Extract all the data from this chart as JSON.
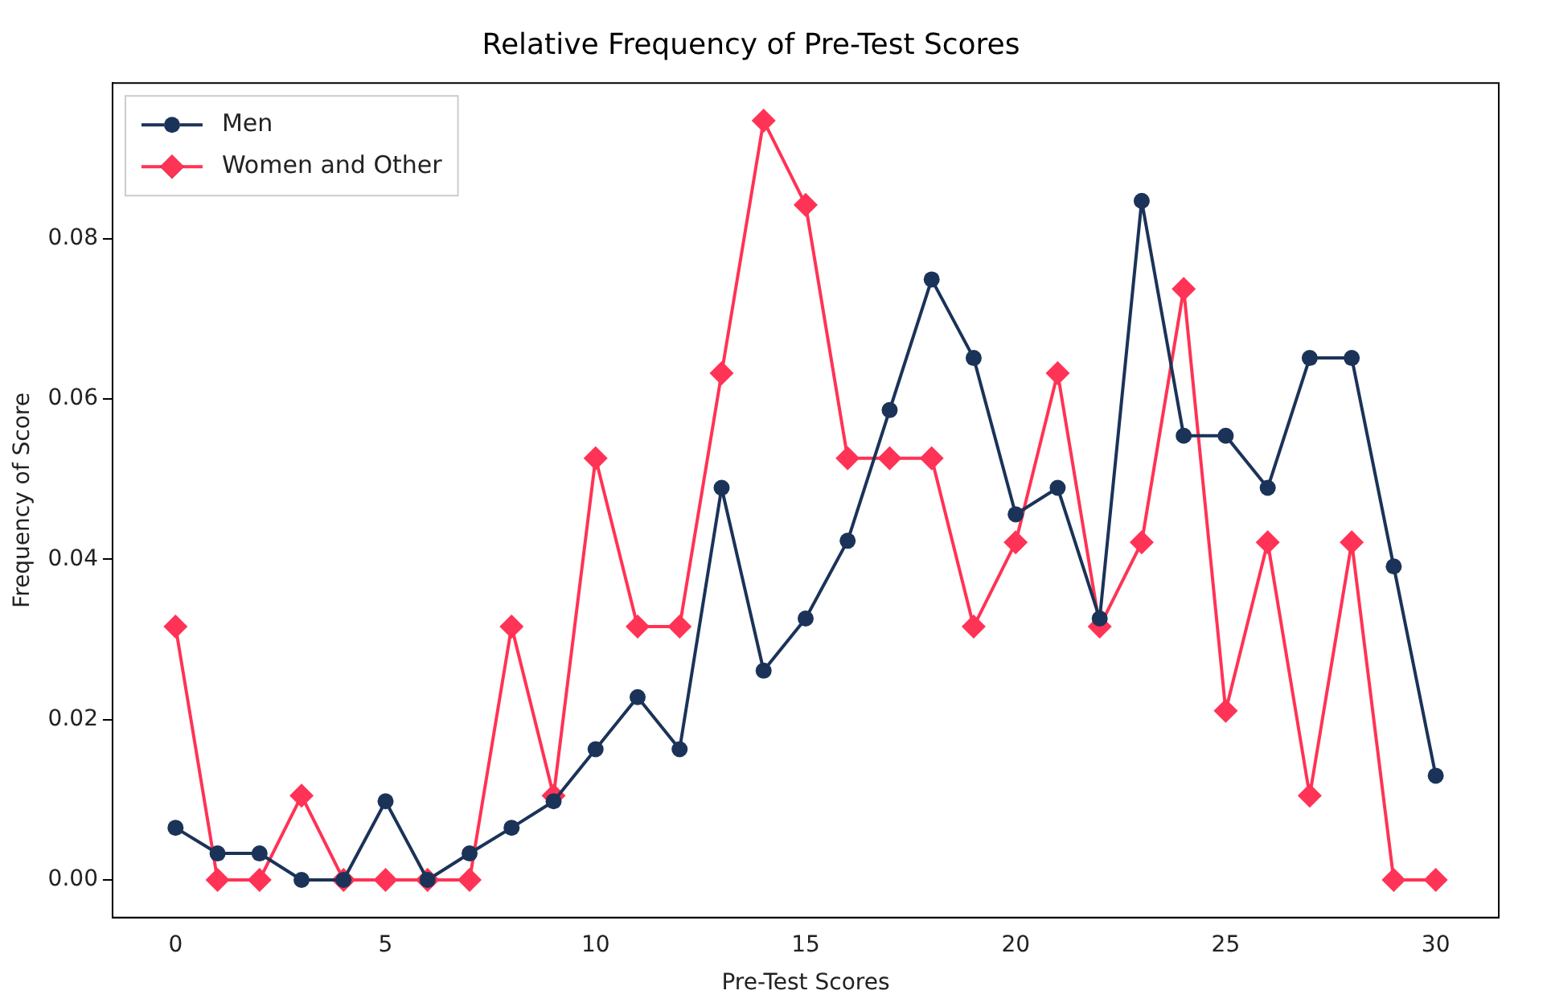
{
  "chart_data": {
    "type": "line",
    "title": "Relative Frequency of Pre-Test Scores",
    "xlabel": "Pre-Test Scores",
    "ylabel": "Frequency of Score",
    "x": [
      0,
      1,
      2,
      3,
      4,
      5,
      6,
      7,
      8,
      9,
      10,
      11,
      12,
      13,
      14,
      15,
      16,
      17,
      18,
      19,
      20,
      21,
      22,
      23,
      24,
      25,
      26,
      27,
      28,
      29,
      30
    ],
    "series": [
      {
        "name": "Men",
        "color": "#1b3358",
        "marker": "circle",
        "values": [
          0.0065,
          0.0033,
          0.0033,
          0,
          0,
          0.0098,
          0,
          0.0033,
          0.0065,
          0.0098,
          0.0163,
          0.0228,
          0.0163,
          0.0489,
          0.0261,
          0.0326,
          0.0423,
          0.0586,
          0.0749,
          0.0651,
          0.0456,
          0.0489,
          0.0326,
          0.0847,
          0.0554,
          0.0554,
          0.0489,
          0.0651,
          0.0651,
          0.0391,
          0.013
        ]
      },
      {
        "name": "Women and Other",
        "color": "#ff3355",
        "marker": "diamond",
        "values": [
          0.0316,
          0,
          0,
          0.0105,
          0,
          0,
          0,
          0,
          0.0316,
          0.0105,
          0.0526,
          0.0316,
          0.0316,
          0.0632,
          0.0947,
          0.0842,
          0.0526,
          0.0526,
          0.0526,
          0.0316,
          0.0421,
          0.0632,
          0.0316,
          0.0421,
          0.0737,
          0.0211,
          0.0421,
          0.0105,
          0.0421,
          0,
          0
        ]
      }
    ],
    "xlim": [
      -1.5,
      31.5
    ],
    "xticks": [
      0,
      5,
      10,
      15,
      20,
      25,
      30
    ],
    "ylim": [
      -0.0047,
      0.0994
    ],
    "yticks": [
      {
        "value": 0,
        "label": "0.00"
      },
      {
        "value": 0.02,
        "label": "0.02"
      },
      {
        "value": 0.04,
        "label": "0.04"
      },
      {
        "value": 0.06,
        "label": "0.06"
      },
      {
        "value": 0.08,
        "label": "0.08"
      }
    ],
    "grid": false,
    "legend": "top left",
    "line_style": "solid"
  }
}
